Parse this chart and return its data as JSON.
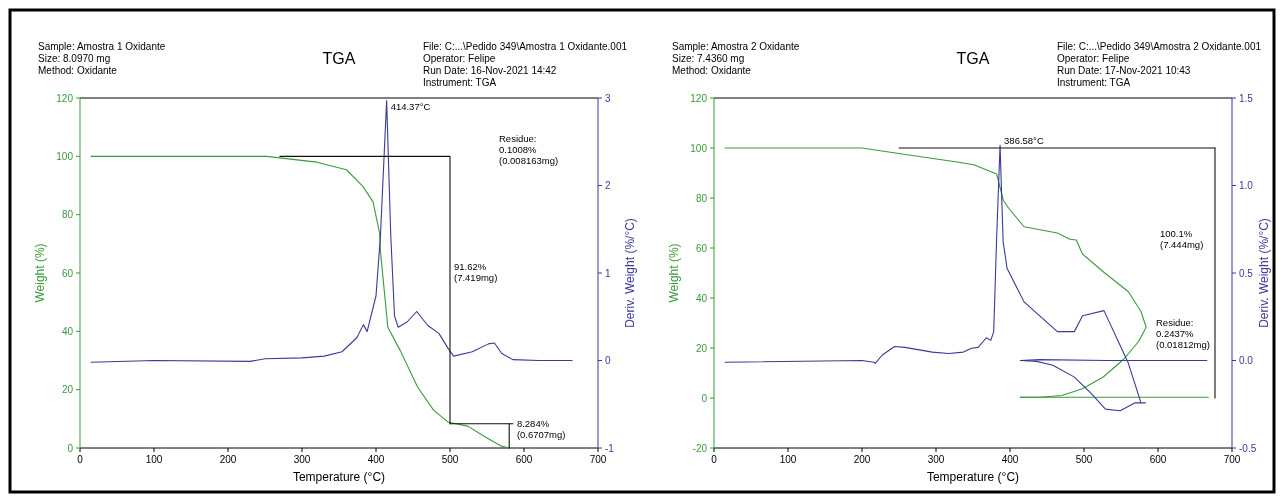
{
  "chart_data": [
    {
      "type": "line",
      "title": "TGA",
      "subtitle": "Sample: Amostra 1 Oxidante\nSize:  8.0970 mg\nMethod: Oxidante",
      "xlabel": "Temperature (°C)",
      "ylabel": "Weight (%)",
      "y2label": "Deriv. Weight (%/°C)",
      "xlim": [
        0,
        700
      ],
      "xticks": [
        0,
        100,
        200,
        300,
        400,
        500,
        600,
        700
      ],
      "ylim": [
        0,
        120
      ],
      "yticks": [
        0,
        20,
        40,
        60,
        80,
        100,
        120
      ],
      "y2lim": [
        -1,
        3
      ],
      "y2ticks": [
        -1,
        0,
        1,
        2,
        3
      ],
      "series": [
        {
          "color": "#3a9a3a",
          "x": [
            15,
            100,
            240,
            252,
            320,
            360,
            382,
            396,
            405,
            406,
            416,
            433,
            456,
            478,
            498,
            524,
            546,
            569,
            580
          ],
          "values": [
            100,
            100,
            100,
            100,
            98,
            95.4,
            89.8,
            84.4,
            73.5,
            67.4,
            41.4,
            33.3,
            21,
            12.9,
            8.8,
            7.5,
            4,
            0.7,
            0
          ]
        },
        {
          "color": "#3a3a9a",
          "axis": "y2",
          "x": [
            15,
            100,
            230,
            250,
            300,
            330,
            354,
            374,
            383,
            388,
            400,
            406,
            414.37,
            420,
            425,
            430,
            442,
            455,
            470,
            485,
            498,
            505,
            530,
            552,
            560,
            570,
            585,
            620,
            665
          ],
          "values": [
            -0.02,
            0,
            -0.01,
            0.02,
            0.03,
            0.05,
            0.1,
            0.26,
            0.41,
            0.33,
            0.74,
            1.42,
            2.97,
            1.42,
            0.51,
            0.38,
            0.44,
            0.56,
            0.4,
            0.31,
            0.13,
            0.05,
            0.1,
            0.19,
            0.2,
            0.08,
            0.01,
            0,
            0
          ]
        },
        {
          "color": "#111111",
          "x": [
            270,
            500,
            500
          ],
          "values": [
            100,
            100,
            8.3
          ]
        },
        {
          "color": "#111111",
          "x": [
            500,
            585
          ],
          "values": [
            8.3,
            8.3
          ]
        },
        {
          "color": "#111111",
          "x": [
            580,
            580
          ],
          "values": [
            8.3,
            0
          ]
        }
      ],
      "annotations": [
        "File: C:...\\Pedido 349\\Amostra 1 Oxidante.001\nOperator: Felipe\nRun Date: 16-Nov-2021 14:42\nInstrument: TGA",
        {
          "text": "414.37°C",
          "x": 414.37,
          "y": 117
        },
        "Residue:\n0.1008%\n(0.008163mg)",
        {
          "text": "91.62%\n(7.419mg)",
          "x": 500,
          "y": 62
        },
        {
          "text": "8.284%\n(0.6707mg)",
          "x": 585,
          "y": 8.3
        }
      ]
    },
    {
      "type": "line",
      "title": "TGA",
      "subtitle": "Sample: Amostra 2 Oxidante\nSize:  7.4360 mg\nMethod: Oxidante",
      "xlabel": "Temperature (°C)",
      "ylabel": "Weight (%)",
      "y2label": "Deriv. Weight (%/°C)",
      "xlim": [
        0,
        700
      ],
      "xticks": [
        0,
        100,
        200,
        300,
        400,
        500,
        600,
        700
      ],
      "ylim": [
        -20,
        120
      ],
      "yticks": [
        -20,
        0,
        20,
        40,
        60,
        80,
        100,
        120
      ],
      "y2lim": [
        -0.5,
        1.5
      ],
      "y2ticks": [
        -0.5,
        {
          "value": 0,
          "label": "0.0"
        },
        0.5,
        {
          "value": 1,
          "label": "1.0"
        },
        1.5
      ],
      "series": [
        {
          "color": "#3a9a3a",
          "x": [
            15,
            200,
            261,
            328.6,
            351,
            382,
            385,
            391,
            399,
            419,
            464,
            481,
            489.6,
            498,
            526,
            560,
            577,
            584,
            574,
            554,
            526,
            498,
            470,
            441,
            414
          ],
          "values": [
            100,
            100,
            97.3,
            94.4,
            93.3,
            89.6,
            86,
            79,
            75.6,
            68.5,
            66,
            63.5,
            63.2,
            57.6,
            50.5,
            42.5,
            34.6,
            28.3,
            22.7,
            15.6,
            8.4,
            3.7,
            1,
            0.3,
            0.3
          ]
        },
        {
          "color": "#3a9a3a",
          "x": [
            414,
            668
          ],
          "values": [
            0.3,
            0.3
          ]
        },
        {
          "color": "#3a3a9a",
          "axis": "y2",
          "x": [
            15,
            200,
            216,
            218,
            227,
            244,
            258,
            295,
            317,
            337,
            348,
            357,
            368,
            374,
            378,
            382,
            386.58,
            390.7,
            396,
            419,
            464,
            487,
            498,
            527,
            560,
            577,
            583,
            569,
            549,
            529,
            509,
            487,
            458,
            436,
            414,
            440,
            530,
            666
          ],
          "values": [
            -0.01,
            0,
            -0.01,
            -0.016,
            0.03,
            0.08,
            0.075,
            0.048,
            0.04,
            0.048,
            0.07,
            0.075,
            0.13,
            0.115,
            0.165,
            0.71,
            1.23,
            0.68,
            0.527,
            0.335,
            0.165,
            0.165,
            0.256,
            0.285,
            -0.016,
            -0.242,
            -0.242,
            -0.242,
            -0.287,
            -0.278,
            -0.185,
            -0.095,
            -0.027,
            -0.005,
            0,
            0.005,
            0,
            0
          ]
        },
        {
          "color": "#111111",
          "x": [
            250,
            677
          ],
          "values": [
            100,
            100
          ]
        },
        {
          "color": "#111111",
          "x": [
            677,
            677
          ],
          "values": [
            100,
            0
          ]
        }
      ],
      "annotations": [
        "File: C:...\\Pedido 349\\Amostra 2 Oxidante.001\nOperator: Felipe\nRun Date: 17-Nov-2021 10:43\nInstrument: TGA",
        {
          "text": "386.58°C",
          "x": 386.58,
          "y": 103
        },
        "100.1%\n(7.444mg)",
        "Residue:\n0.2437%\n(0.01812mg)"
      ]
    }
  ]
}
